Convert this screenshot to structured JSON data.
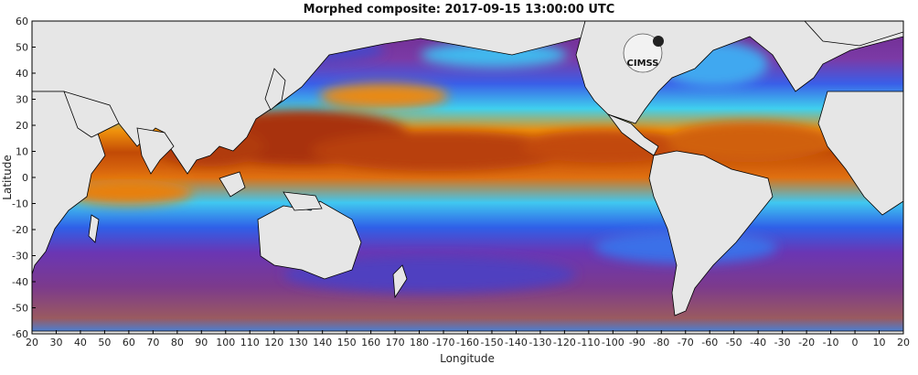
{
  "title": "Morphed composite: 2017-09-15 13:00:00 UTC",
  "x_axis": {
    "label": "Longitude",
    "ticks": [
      "20",
      "30",
      "40",
      "50",
      "60",
      "70",
      "80",
      "90",
      "100",
      "110",
      "120",
      "130",
      "140",
      "150",
      "160",
      "170",
      "180",
      "-170",
      "-160",
      "-150",
      "-140",
      "-130",
      "-120",
      "-110",
      "-100",
      "-90",
      "-80",
      "-70",
      "-60",
      "-50",
      "-40",
      "-30",
      "-20",
      "-10",
      "0",
      "10",
      "20"
    ]
  },
  "y_axis": {
    "label": "Latitude",
    "ticks": [
      "60",
      "50",
      "40",
      "30",
      "20",
      "10",
      "0",
      "-10",
      "-20",
      "-30",
      "-40",
      "-50",
      "-60"
    ]
  },
  "logo": {
    "text": "CIMSS"
  },
  "colors": {
    "land": "#e6e6e6",
    "border": "#000000",
    "dry": "#7b2fa0",
    "low": "#2e6cf0",
    "mid": "#38d0f0",
    "high": "#f07c10",
    "very_high": "#8a1e04"
  },
  "chart_data": {
    "type": "heatmap",
    "title": "Morphed composite: 2017-09-15 13:00:00 UTC",
    "xlabel": "Longitude",
    "ylabel": "Latitude",
    "xlim": [
      20,
      380
    ],
    "ylim": [
      -60,
      60
    ]
  }
}
